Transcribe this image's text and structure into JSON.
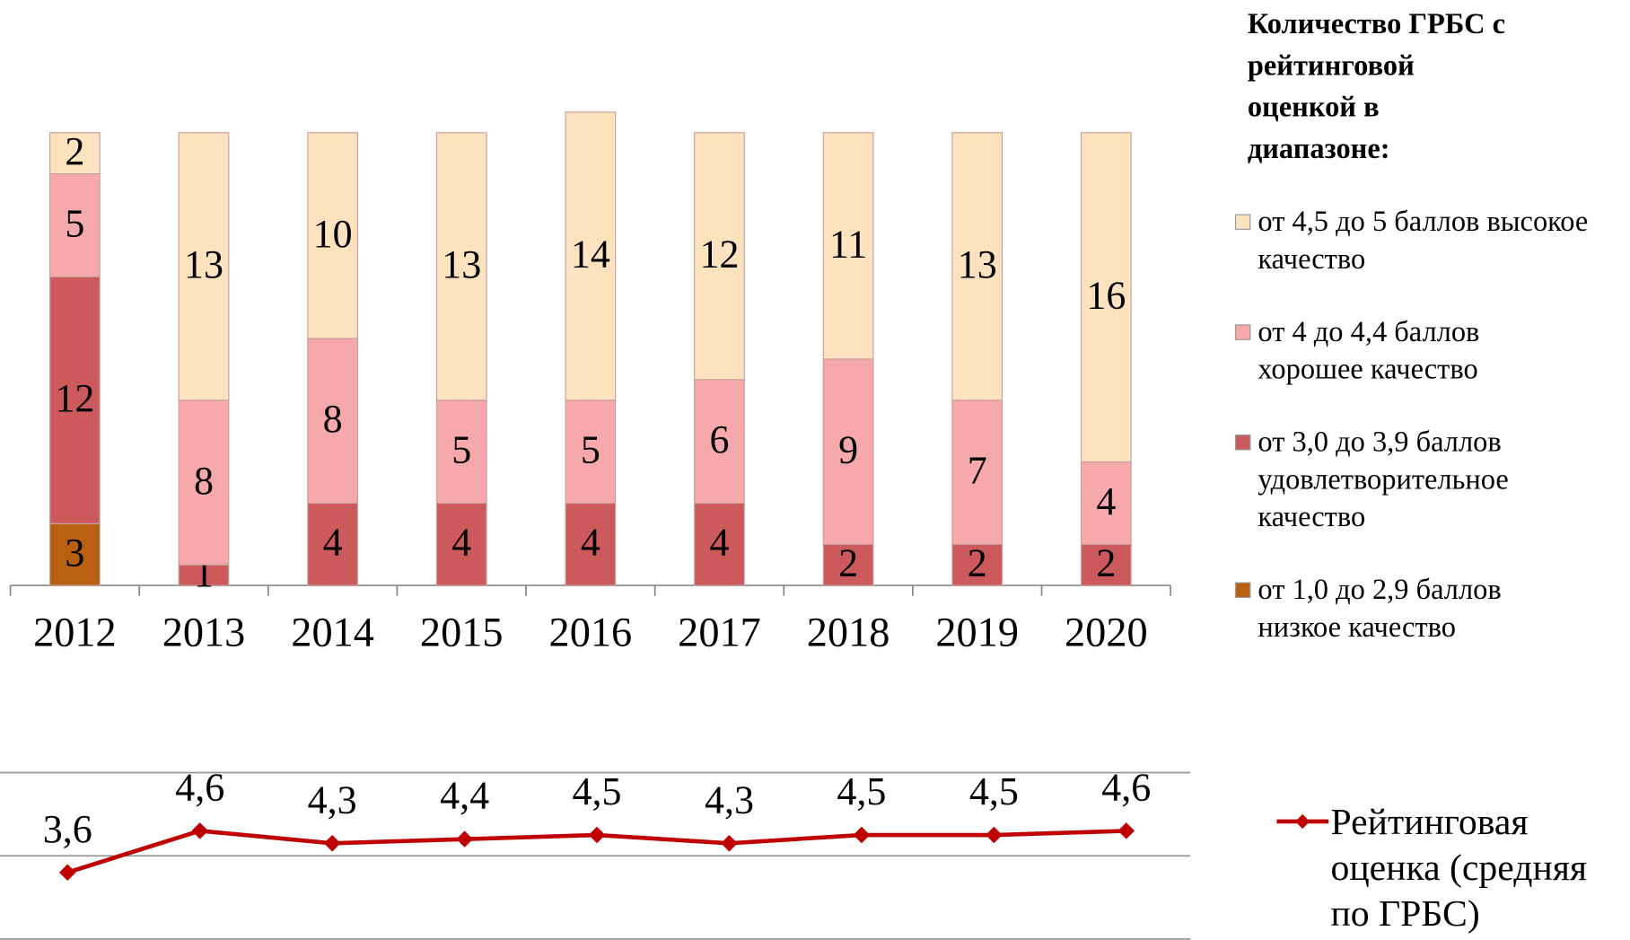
{
  "chart_data": [
    {
      "type": "stacked_bar",
      "categories": [
        "2012",
        "2013",
        "2014",
        "2015",
        "2016",
        "2017",
        "2018",
        "2019",
        "2020"
      ],
      "legend_title": "Количество ГРБС с рейтинговой оценкой в диапазоне:",
      "series": [
        {
          "name": "от 1,0 до 2,9 баллов низкое качество",
          "color": "#b8600f",
          "values": [
            3,
            0,
            0,
            0,
            0,
            0,
            0,
            0,
            0
          ]
        },
        {
          "name": "от 3,0 до 3,9 баллов удовлетворительное качество",
          "color": "#cc5a5c",
          "values": [
            12,
            1,
            4,
            4,
            4,
            4,
            2,
            2,
            2
          ]
        },
        {
          "name": "от 4 до 4,4 баллов хорошее качество",
          "color": "#f6a8ab",
          "values": [
            5,
            8,
            8,
            5,
            5,
            6,
            9,
            7,
            4
          ]
        },
        {
          "name": "от 4,5 до 5 баллов высокое качество",
          "color": "#fce2bf",
          "values": [
            2,
            13,
            10,
            13,
            14,
            12,
            11,
            13,
            16
          ]
        }
      ],
      "ylim": [
        0,
        24
      ],
      "legend": "right"
    },
    {
      "type": "line",
      "series": [
        {
          "name": "Рейтинговая оценка (средняя по ГРБС)",
          "color": "#c00000",
          "values": [
            3.6,
            4.6,
            4.3,
            4.4,
            4.5,
            4.3,
            4.5,
            4.5,
            4.6
          ],
          "value_labels": [
            "3,6",
            "4,6",
            "4,3",
            "4,4",
            "4,5",
            "4,3",
            "4,5",
            "4,5",
            "4,6"
          ]
        }
      ],
      "ylim": [
        2,
        6
      ],
      "yticks": [
        2,
        4,
        6
      ],
      "grid": true,
      "legend": "right"
    }
  ]
}
